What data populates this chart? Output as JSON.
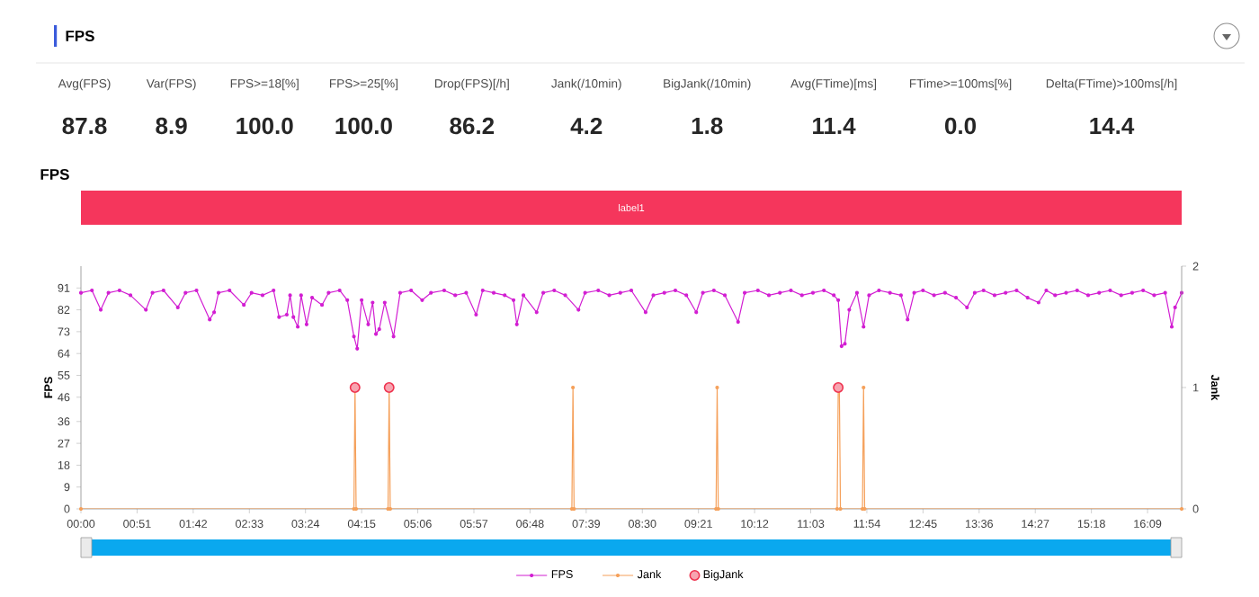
{
  "chart_data": [
    {
      "type": "other",
      "title": "FPS",
      "categories": [
        "Avg(FPS)",
        "Var(FPS)",
        "FPS>=18[%]",
        "FPS>=25[%]",
        "Drop(FPS)[/h]",
        "Jank(/10min)",
        "BigJank(/10min)",
        "Avg(FTime)[ms]",
        "FTime>=100ms[%]",
        "Delta(FTime)>100ms[/h]"
      ],
      "value_labels": [
        "87.8",
        "8.9",
        "100.0",
        "100.0",
        "86.2",
        "4.2",
        "1.8",
        "11.4",
        "0.0",
        "14.4"
      ]
    },
    {
      "type": "line",
      "title": "FPS",
      "annotations": [
        "label1"
      ],
      "ylabel": "FPS",
      "y2label": "Jank",
      "xlim": [
        0,
        1000
      ],
      "ylim": [
        0,
        100
      ],
      "y2lim": [
        0,
        2
      ],
      "xticks": [
        {
          "value": 0,
          "label": "00:00"
        },
        {
          "value": 51,
          "label": "00:51"
        },
        {
          "value": 102,
          "label": "01:42"
        },
        {
          "value": 153,
          "label": "02:33"
        },
        {
          "value": 204,
          "label": "03:24"
        },
        {
          "value": 255,
          "label": "04:15"
        },
        {
          "value": 306,
          "label": "05:06"
        },
        {
          "value": 357,
          "label": "05:57"
        },
        {
          "value": 408,
          "label": "06:48"
        },
        {
          "value": 459,
          "label": "07:39"
        },
        {
          "value": 510,
          "label": "08:30"
        },
        {
          "value": 561,
          "label": "09:21"
        },
        {
          "value": 612,
          "label": "10:12"
        },
        {
          "value": 663,
          "label": "11:03"
        },
        {
          "value": 714,
          "label": "11:54"
        },
        {
          "value": 765,
          "label": "12:45"
        },
        {
          "value": 816,
          "label": "13:36"
        },
        {
          "value": 867,
          "label": "14:27"
        },
        {
          "value": 918,
          "label": "15:18"
        },
        {
          "value": 969,
          "label": "16:09"
        }
      ],
      "yticks": [
        0,
        9,
        18,
        27,
        36,
        46,
        55,
        64,
        73,
        82,
        91
      ],
      "y2ticks": [
        0,
        1,
        2
      ],
      "marker": "circle",
      "legend": "bottom",
      "series": [
        {
          "name": "FPS",
          "color": "#d21ed2",
          "type": "line",
          "axis": "y",
          "x": [
            0,
            10,
            18,
            25,
            35,
            45,
            59,
            65,
            75,
            88,
            95,
            105,
            117,
            121,
            125,
            135,
            148,
            155,
            165,
            175,
            180,
            187,
            190,
            193,
            197,
            200,
            205,
            210,
            219,
            225,
            235,
            242,
            248,
            251,
            255,
            261,
            265,
            268,
            271,
            276,
            284,
            290,
            300,
            310,
            318,
            330,
            340,
            350,
            359,
            365,
            375,
            385,
            393,
            396,
            402,
            414,
            420,
            430,
            440,
            452,
            458,
            470,
            480,
            490,
            500,
            513,
            520,
            530,
            540,
            550,
            559,
            565,
            575,
            585,
            597,
            603,
            615,
            625,
            635,
            645,
            655,
            665,
            675,
            684,
            688,
            691,
            694,
            698,
            705,
            711,
            716,
            725,
            735,
            745,
            751,
            757,
            765,
            775,
            785,
            795,
            805,
            812,
            820,
            830,
            840,
            850,
            860,
            870,
            877,
            885,
            895,
            905,
            915,
            925,
            935,
            945,
            955,
            965,
            975,
            985,
            991,
            994,
            1000
          ],
          "values": [
            89,
            90,
            82,
            89,
            90,
            88,
            82,
            89,
            90,
            83,
            89,
            90,
            78,
            81,
            89,
            90,
            84,
            89,
            88,
            90,
            79,
            80,
            88,
            79,
            75,
            88,
            76,
            87,
            84,
            89,
            90,
            86,
            71,
            66,
            86,
            76,
            85,
            72,
            74,
            85,
            71,
            89,
            90,
            86,
            89,
            90,
            88,
            89,
            80,
            90,
            89,
            88,
            86,
            76,
            88,
            81,
            89,
            90,
            88,
            82,
            89,
            90,
            88,
            89,
            90,
            81,
            88,
            89,
            90,
            88,
            81,
            89,
            90,
            88,
            77,
            89,
            90,
            88,
            89,
            90,
            88,
            89,
            90,
            88,
            86,
            67,
            68,
            82,
            89,
            75,
            88,
            90,
            89,
            88,
            78,
            89,
            90,
            88,
            89,
            87,
            83,
            89,
            90,
            88,
            89,
            90,
            87,
            85,
            90,
            88,
            89,
            90,
            88,
            89,
            90,
            88,
            89,
            90,
            88,
            89,
            75,
            83,
            89
          ]
        },
        {
          "name": "Jank",
          "color": "#f5a05a",
          "type": "line",
          "axis": "y2",
          "x": [
            0,
            248,
            249,
            250,
            279,
            280,
            281,
            446,
            447,
            448,
            577,
            578,
            579,
            687,
            688,
            689,
            690,
            710,
            711,
            712,
            1000
          ],
          "values": [
            0,
            0,
            1,
            0,
            0,
            1,
            0,
            0,
            1,
            0,
            0,
            1,
            0,
            0,
            1,
            1,
            0,
            0,
            1,
            0,
            0
          ]
        },
        {
          "name": "BigJank",
          "color": "#ee3450",
          "type": "scatter",
          "axis": "y2",
          "x": [
            249,
            280,
            688
          ],
          "values": [
            1,
            1,
            1
          ]
        }
      ]
    }
  ]
}
